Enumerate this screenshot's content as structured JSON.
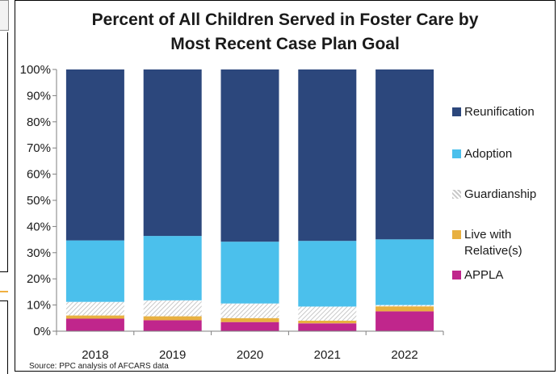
{
  "chart_data": {
    "type": "bar",
    "stacked": true,
    "title_lines": [
      "Percent of All Children Served in Foster Care by",
      "Most Recent Case Plan Goal"
    ],
    "categories": [
      "2018",
      "2019",
      "2020",
      "2021",
      "2022"
    ],
    "ylim": [
      0,
      100
    ],
    "yticks": [
      "0%",
      "10%",
      "20%",
      "30%",
      "40%",
      "50%",
      "60%",
      "70%",
      "80%",
      "90%",
      "100%"
    ],
    "grid": false,
    "legend_position": "right",
    "series": [
      {
        "name": "APPLA",
        "color": "#c0268c",
        "values": [
          4.8,
          4.2,
          3.5,
          3.0,
          7.6
        ]
      },
      {
        "name": "Live with Relative(s)",
        "color": "#e8b040",
        "values": [
          1.2,
          1.5,
          1.5,
          1.0,
          1.9
        ]
      },
      {
        "name": "Guardianship",
        "color": "#d4d4d4",
        "pattern": "hatch",
        "values": [
          5.2,
          6.1,
          5.6,
          5.4,
          0.5
        ]
      },
      {
        "name": "Adoption",
        "color": "#4bc0ec",
        "values": [
          23.5,
          24.6,
          23.6,
          25.1,
          25.1
        ]
      },
      {
        "name": "Reunification",
        "color": "#2c477c",
        "values": [
          65.3,
          63.6,
          65.8,
          65.5,
          64.9
        ]
      }
    ],
    "legend_order": [
      "Reunification",
      "Adoption",
      "Guardianship",
      "Live with Relative(s)",
      "APPLA"
    ],
    "source": "Source: PPC analysis of AFCARS data"
  }
}
